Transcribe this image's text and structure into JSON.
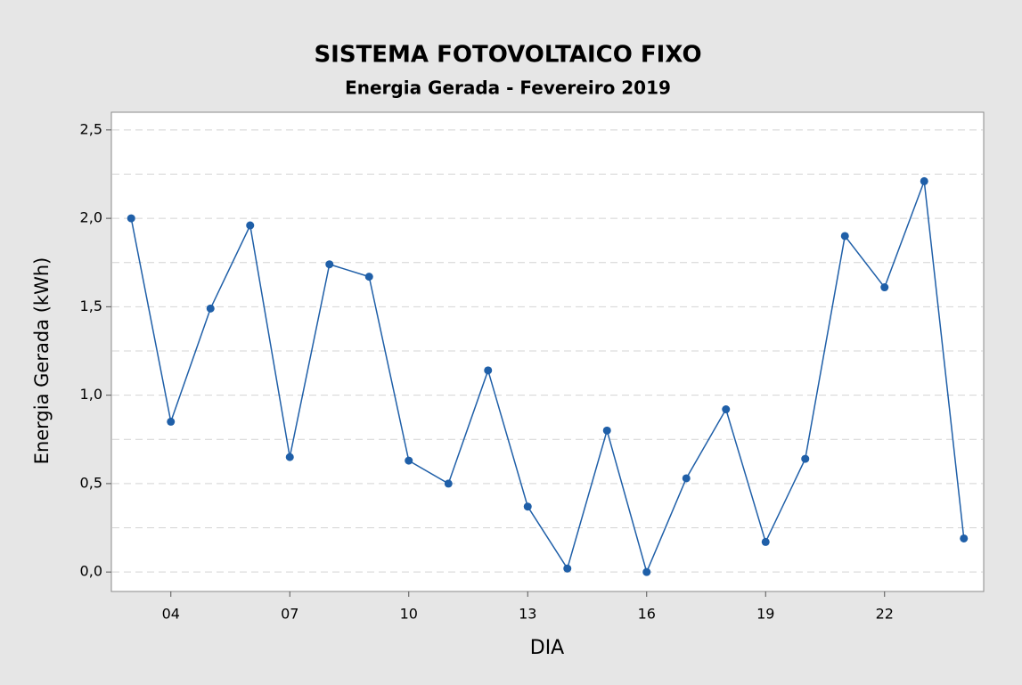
{
  "chart_data": {
    "type": "line",
    "title": "SISTEMA FOTOVOLTAICO FIXO",
    "subtitle": "Energia Gerada - Fevereiro 2019",
    "x_label": "DIA",
    "y_label": "Energia Gerada (kWh)",
    "categories": [
      null,
      "04",
      null,
      null,
      "07",
      null,
      null,
      "10",
      null,
      null,
      "13",
      null,
      null,
      "16",
      null,
      null,
      "19",
      null,
      null,
      "22",
      null,
      null
    ],
    "series": [
      {
        "name": "Energia Gerada",
        "color": "#1f5fa8",
        "values": [
          2.0,
          0.85,
          1.49,
          1.96,
          0.65,
          1.74,
          1.67,
          0.63,
          0.5,
          1.14,
          0.37,
          0.02,
          0.8,
          0.0,
          0.53,
          0.92,
          0.17,
          0.64,
          1.9,
          1.61,
          2.21,
          0.19
        ]
      }
    ],
    "ylim": [
      -0.11,
      2.6
    ],
    "yticks": [
      {
        "value": 0,
        "label": "0,0"
      },
      {
        "value": 0.5,
        "label": "0,5"
      },
      {
        "value": 1,
        "label": "1,0"
      },
      {
        "value": 1.5,
        "label": "1,5"
      },
      {
        "value": 2,
        "label": "2,0"
      },
      {
        "value": 2.5,
        "label": "2,5"
      }
    ],
    "ygrid_minor": [
      0.25,
      0.75,
      1.25,
      1.75,
      2.25
    ],
    "grid": true
  }
}
